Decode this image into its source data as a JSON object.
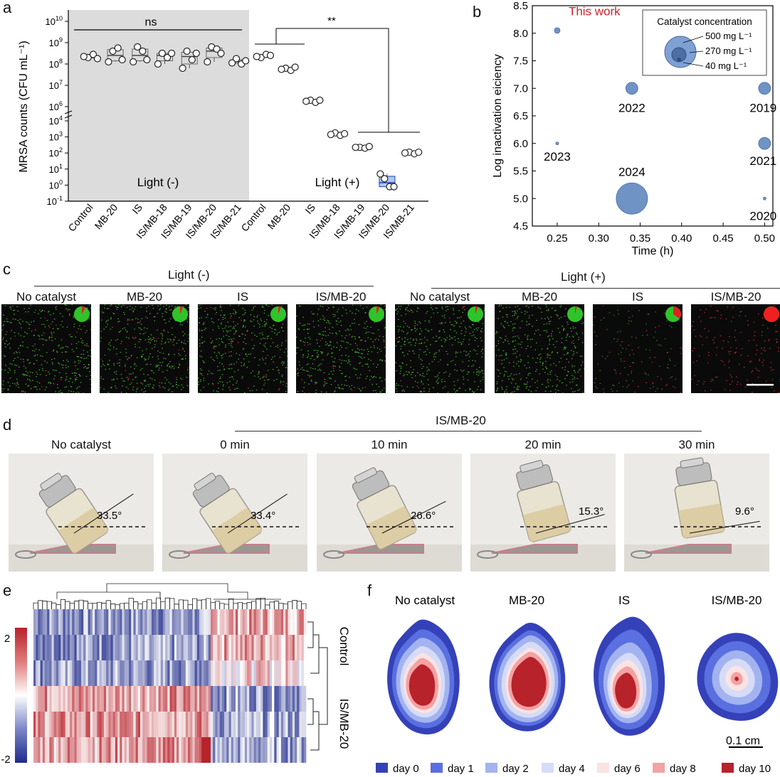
{
  "panels": {
    "a": "a",
    "b": "b",
    "c": "c",
    "d": "d",
    "e": "e",
    "f": "f"
  },
  "panel_a": {
    "ylabel": "MRSA counts (CFU mL⁻¹)",
    "y_ticks_top": [
      "10^6",
      "10^7",
      "10^8",
      "10^9",
      "10^10"
    ],
    "y_ticks_bottom": [
      "10^-1",
      "10^0",
      "10^1",
      "10^2",
      "10^3",
      "10^4"
    ],
    "light_off_label": "Light (-)",
    "light_on_label": "Light (+)",
    "ns_label": "ns",
    "sig_label": "**",
    "shade_color": "#dcdcdc",
    "box_dark_color": "#dcdcdc",
    "box_light_color": "#a9c9ee"
  },
  "panel_b": {
    "ylabel": "Log inactivation eiciency",
    "xlabel": "Time (h)",
    "this_work": "This work",
    "this_work_color": "#d0202a",
    "legend_title": "Catalyst concentration",
    "legend_items": [
      "500 mg L⁻¹",
      "270 mg L⁻¹",
      "40 mg L⁻¹"
    ],
    "bubble_color": "#6f93c4"
  },
  "panel_c": {
    "group_off": "Light (-)",
    "group_on": "Light (+)",
    "images": [
      {
        "label": "No catalyst",
        "dead_fraction": 0.08
      },
      {
        "label": "MB-20",
        "dead_fraction": 0.06
      },
      {
        "label": "IS",
        "dead_fraction": 0.06
      },
      {
        "label": "IS/MB-20",
        "dead_fraction": 0.07
      },
      {
        "label": "No catalyst",
        "dead_fraction": 0.05
      },
      {
        "label": "MB-20",
        "dead_fraction": 0.04
      },
      {
        "label": "IS",
        "dead_fraction": 0.35
      },
      {
        "label": "IS/MB-20",
        "dead_fraction": 0.99
      }
    ]
  },
  "panel_d": {
    "group_label": "IS/MB-20",
    "photos": [
      {
        "label": "No catalyst",
        "angle": "33.5°",
        "tilt": 33.5
      },
      {
        "label": "0 min",
        "angle": "33.4°",
        "tilt": 33.4
      },
      {
        "label": "10 min",
        "angle": "26.6°",
        "tilt": 26.6
      },
      {
        "label": "20 min",
        "angle": "15.3°",
        "tilt": 15.3
      },
      {
        "label": "30 min",
        "angle": "9.6°",
        "tilt": 9.6
      }
    ]
  },
  "panel_e": {
    "scale_max": "2",
    "scale_min": "-2",
    "row_group_top": "Control",
    "row_group_bottom": "IS/MB-20"
  },
  "panel_f": {
    "labels": [
      "No catalyst",
      "MB-20",
      "IS",
      "IS/MB-20"
    ],
    "scale_bar": "0.1 cm",
    "legend": [
      {
        "label": "day 0",
        "color": "#3441b8"
      },
      {
        "label": "day 1",
        "color": "#5a6fe0"
      },
      {
        "label": "day 2",
        "color": "#a3b3ef"
      },
      {
        "label": "day 4",
        "color": "#d6dcf7"
      },
      {
        "label": "day 6",
        "color": "#fbe3e3"
      },
      {
        "label": "day 8",
        "color": "#f4a2a4"
      },
      {
        "label": "day 10",
        "color": "#b8222a"
      }
    ]
  },
  "chart_data": [
    {
      "type": "box",
      "panel": "a",
      "categories": [
        "Control",
        "MB-20",
        "IS",
        "IS/MB-18",
        "IS/MB-19",
        "IS/MB-20",
        "IS/MB-21",
        "Control",
        "MB-20",
        "IS",
        "IS/MB-18",
        "IS/MB-19",
        "IS/MB-20",
        "IS/MB-21"
      ],
      "groups": [
        "Light (-)",
        "Light (-)",
        "Light (-)",
        "Light (-)",
        "Light (-)",
        "Light (-)",
        "Light (-)",
        "Light (+)",
        "Light (+)",
        "Light (+)",
        "Light (+)",
        "Light (+)",
        "Light (+)",
        "Light (+)"
      ],
      "log10_points": [
        [
          8.3,
          8.45,
          8.35,
          8.25
        ],
        [
          8.6,
          8.75,
          8.1,
          8.2
        ],
        [
          8.8,
          8.6,
          8.1,
          8.2
        ],
        [
          8.5,
          8.3,
          8.0,
          8.5
        ],
        [
          8.6,
          8.2,
          7.8,
          8.5
        ],
        [
          8.8,
          8.7,
          8.1,
          8.5
        ],
        [
          8.25,
          8.0,
          8.05,
          8.15
        ],
        [
          8.3,
          8.45,
          8.35,
          8.4
        ],
        [
          7.8,
          7.7,
          7.75,
          7.85
        ],
        [
          6.3,
          6.2,
          6.25,
          6.3
        ],
        [
          3.25,
          3.1,
          3.15,
          3.2
        ],
        [
          2.35,
          2.3,
          2.35,
          2.4
        ],
        [
          0.4,
          -0.1,
          0.7,
          -0.1
        ],
        [
          2.05,
          1.95,
          2.0,
          2.05
        ]
      ],
      "ylabel": "MRSA counts (CFU mL⁻¹)",
      "yscale": "log (broken axis)",
      "annotations": [
        "ns",
        "**",
        "Light (-)",
        "Light (+)"
      ]
    },
    {
      "type": "scatter",
      "panel": "b",
      "points": [
        {
          "x": 0.25,
          "y": 8.05,
          "label": "This work",
          "concentration": 40
        },
        {
          "x": 0.25,
          "y": 6.0,
          "label": "2023",
          "concentration": 5
        },
        {
          "x": 0.34,
          "y": 7.0,
          "label": "2022",
          "concentration": 100
        },
        {
          "x": 0.34,
          "y": 5.0,
          "label": "2024",
          "concentration": 500
        },
        {
          "x": 0.5,
          "y": 7.0,
          "label": "2019",
          "concentration": 100
        },
        {
          "x": 0.5,
          "y": 6.0,
          "label": "2021",
          "concentration": 100
        },
        {
          "x": 0.5,
          "y": 5.0,
          "label": "2020",
          "concentration": 5
        }
      ],
      "xlabel": "Time (h)",
      "ylabel": "Log inactivation eiciency",
      "xlim": [
        0.22,
        0.51
      ],
      "ylim": [
        4.5,
        8.5
      ],
      "x_ticks": [
        "0.25",
        "0.30",
        "0.35",
        "0.40",
        "0.45",
        "0.50"
      ],
      "y_ticks": [
        "4.5",
        "5.0",
        "5.5",
        "6.0",
        "6.5",
        "7.0",
        "7.5",
        "8.0",
        "8.5"
      ],
      "legend_title": "Catalyst concentration"
    },
    {
      "type": "heatmap",
      "panel": "e",
      "rows": 6,
      "row_groups": [
        "Control",
        "Control",
        "Control",
        "IS/MB-20",
        "IS/MB-20",
        "IS/MB-20"
      ],
      "color_range": [
        -2,
        2
      ]
    }
  ]
}
